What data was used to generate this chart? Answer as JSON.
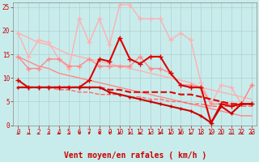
{
  "background_color": "#c8ecec",
  "grid_color": "#b0c8c8",
  "xlim": [
    -0.5,
    23.5
  ],
  "ylim": [
    0,
    26
  ],
  "x": [
    0,
    1,
    2,
    3,
    4,
    5,
    6,
    7,
    8,
    9,
    10,
    11,
    12,
    13,
    14,
    15,
    16,
    17,
    18,
    19,
    20,
    21,
    22,
    23
  ],
  "series": [
    {
      "y": [
        19.5,
        14.5,
        18.0,
        17.5,
        14.0,
        12.0,
        22.5,
        17.5,
        22.5,
        17.0,
        25.5,
        25.5,
        22.5,
        22.5,
        22.5,
        18.0,
        19.5,
        18.0,
        9.0,
        4.5,
        8.5,
        8.0,
        4.5,
        8.5
      ],
      "color": "#ffb0b0",
      "marker": "+",
      "markersize": 4,
      "linewidth": 1.0,
      "linestyle": "-",
      "zorder": 2
    },
    {
      "y": [
        19.5,
        18.5,
        17.5,
        17.0,
        16.0,
        15.0,
        14.5,
        14.0,
        13.5,
        13.0,
        12.5,
        12.0,
        11.5,
        11.0,
        10.5,
        10.0,
        9.5,
        9.0,
        8.0,
        7.5,
        7.0,
        6.5,
        6.0,
        5.5
      ],
      "color": "#ffb0b0",
      "marker": null,
      "markersize": 0,
      "linewidth": 1.0,
      "linestyle": "-",
      "zorder": 2
    },
    {
      "y": [
        14.5,
        12.0,
        12.0,
        14.0,
        14.0,
        12.5,
        12.5,
        14.0,
        12.5,
        12.5,
        12.5,
        12.5,
        14.5,
        12.0,
        12.0,
        11.0,
        8.5,
        8.5,
        8.0,
        4.5,
        4.5,
        4.5,
        4.5,
        8.5
      ],
      "color": "#ff8888",
      "marker": "+",
      "markersize": 4,
      "linewidth": 1.0,
      "linestyle": "-",
      "zorder": 3
    },
    {
      "y": [
        14.5,
        13.5,
        12.5,
        12.0,
        11.0,
        10.5,
        10.0,
        9.5,
        9.0,
        8.5,
        8.0,
        7.5,
        7.0,
        6.5,
        6.0,
        5.5,
        5.0,
        4.5,
        4.0,
        3.5,
        3.0,
        2.5,
        2.0,
        2.0
      ],
      "color": "#ff8888",
      "marker": null,
      "markersize": 0,
      "linewidth": 1.0,
      "linestyle": "-",
      "zorder": 2
    },
    {
      "y": [
        9.5,
        8.0,
        8.0,
        8.0,
        8.0,
        8.0,
        8.0,
        9.5,
        14.0,
        13.5,
        18.5,
        14.0,
        13.0,
        14.5,
        14.5,
        11.0,
        8.5,
        8.0,
        8.0,
        0.5,
        4.5,
        4.0,
        4.5,
        4.5
      ],
      "color": "#dd0000",
      "marker": "+",
      "markersize": 4,
      "linewidth": 1.5,
      "linestyle": "-",
      "zorder": 4
    },
    {
      "y": [
        8.0,
        8.0,
        8.0,
        8.0,
        8.0,
        8.0,
        8.0,
        8.0,
        8.0,
        7.5,
        7.5,
        7.0,
        7.0,
        7.0,
        7.0,
        7.0,
        6.5,
        6.5,
        6.0,
        5.5,
        5.0,
        4.5,
        4.5,
        4.5
      ],
      "color": "#dd0000",
      "marker": null,
      "markersize": 0,
      "linewidth": 1.5,
      "linestyle": "--",
      "zorder": 3
    },
    {
      "y": [
        8.0,
        8.0,
        8.0,
        8.0,
        7.5,
        7.5,
        7.0,
        7.0,
        6.5,
        6.5,
        6.5,
        6.0,
        6.0,
        5.5,
        5.5,
        5.0,
        5.0,
        4.5,
        4.5,
        4.0,
        4.0,
        4.0,
        4.0,
        4.0
      ],
      "color": "#ff6666",
      "marker": null,
      "markersize": 0,
      "linewidth": 1.0,
      "linestyle": "--",
      "zorder": 3
    },
    {
      "y": [
        8.0,
        8.0,
        8.0,
        8.0,
        8.0,
        8.0,
        8.0,
        8.0,
        8.0,
        7.0,
        6.5,
        6.0,
        5.5,
        5.0,
        4.5,
        4.0,
        3.5,
        3.0,
        2.0,
        0.5,
        4.0,
        2.5,
        4.5,
        4.5
      ],
      "color": "#cc0000",
      "marker": "+",
      "markersize": 3,
      "linewidth": 1.5,
      "linestyle": "-",
      "zorder": 5
    }
  ],
  "yticks": [
    0,
    5,
    10,
    15,
    20,
    25
  ],
  "xticks": [
    0,
    1,
    2,
    3,
    4,
    5,
    6,
    7,
    8,
    9,
    10,
    11,
    12,
    13,
    14,
    15,
    16,
    17,
    18,
    19,
    20,
    21,
    22,
    23
  ],
  "xlabel": "Vent moyen/en rafales ( km/h )",
  "xlabel_fontsize": 7,
  "tick_fontsize": 5.5,
  "arrow_angles": [
    45,
    45,
    45,
    45,
    45,
    45,
    0,
    0,
    0,
    0,
    0,
    0,
    0,
    0,
    0,
    0,
    0,
    315,
    315,
    45,
    315,
    315,
    0,
    0
  ]
}
